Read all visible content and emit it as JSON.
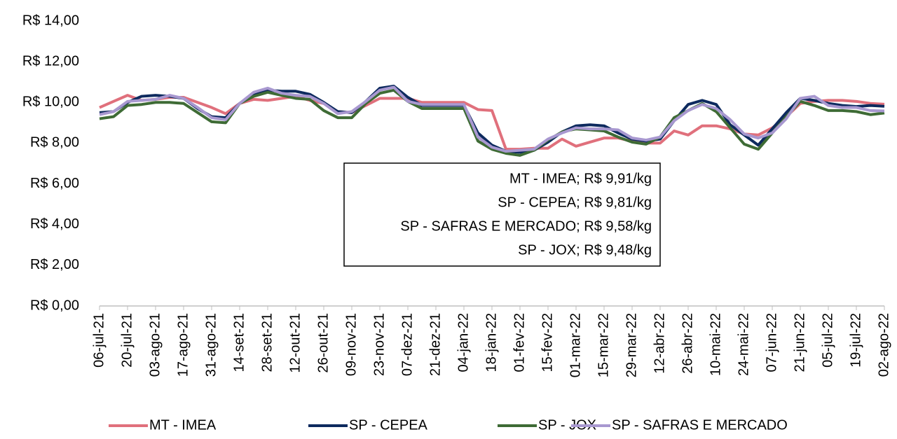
{
  "chart_data": {
    "type": "line",
    "categories": [
      "06-jul-21",
      null,
      "20-jul-21",
      null,
      "03-ago-21",
      null,
      "17-ago-21",
      null,
      "31-ago-21",
      null,
      "14-set-21",
      null,
      "28-set-21",
      null,
      "12-out-21",
      null,
      "26-out-21",
      null,
      "09-nov-21",
      null,
      "23-nov-21",
      null,
      "07-dez-21",
      null,
      "21-dez-21",
      null,
      "04-jan-22",
      null,
      "18-jan-22",
      null,
      "01-fev-22",
      null,
      "15-fev-22",
      null,
      "01-mar-22",
      null,
      "15-mar-22",
      null,
      "29-mar-22",
      null,
      "12-abr-22",
      null,
      "26-abr-22",
      null,
      "10-mai-22",
      null,
      "24-mai-22",
      null,
      "07-jun-22",
      null,
      "21-jun-22",
      null,
      "05-jul-22",
      null,
      "19-jul-22",
      null,
      "02-ago-22"
    ],
    "series": [
      {
        "name": "MT - IMEA",
        "color": "#e0707c",
        "values": [
          9.75,
          10.05,
          10.35,
          10.1,
          10.15,
          10.25,
          10.25,
          10.0,
          9.75,
          9.45,
          9.95,
          10.15,
          10.1,
          10.2,
          10.3,
          10.1,
          9.95,
          9.55,
          9.5,
          9.85,
          10.2,
          10.2,
          10.2,
          10.0,
          10.0,
          10.0,
          10.0,
          9.65,
          9.6,
          7.7,
          7.7,
          7.75,
          7.75,
          8.2,
          7.85,
          8.05,
          8.25,
          8.25,
          8.1,
          8.0,
          8.0,
          8.6,
          8.4,
          8.85,
          8.85,
          8.7,
          8.45,
          8.4,
          8.75,
          9.3,
          9.95,
          10.05,
          10.1,
          10.1,
          10.05,
          9.95,
          9.91
        ]
      },
      {
        "name": "SP - CEPEA",
        "color": "#0d2a5e",
        "values": [
          9.5,
          9.55,
          10.0,
          10.3,
          10.35,
          10.3,
          10.2,
          9.7,
          9.3,
          9.25,
          9.95,
          10.35,
          10.6,
          10.55,
          10.55,
          10.4,
          10.0,
          9.55,
          9.5,
          10.05,
          10.7,
          10.8,
          10.25,
          9.85,
          9.85,
          9.85,
          9.85,
          8.5,
          7.9,
          7.6,
          7.55,
          7.65,
          8.05,
          8.55,
          8.85,
          8.9,
          8.85,
          8.5,
          8.2,
          8.1,
          8.2,
          9.1,
          9.9,
          10.1,
          9.9,
          8.9,
          8.4,
          7.9,
          8.7,
          9.5,
          10.2,
          10.1,
          9.95,
          9.85,
          9.8,
          9.85,
          9.81
        ]
      },
      {
        "name": "SP - JOX",
        "color": "#3e6b35",
        "values": [
          9.2,
          9.3,
          9.85,
          9.9,
          10.0,
          10.0,
          9.95,
          9.5,
          9.05,
          9.0,
          9.95,
          10.3,
          10.5,
          10.35,
          10.2,
          10.15,
          9.6,
          9.25,
          9.25,
          9.95,
          10.45,
          10.6,
          10.05,
          9.7,
          9.7,
          9.7,
          9.7,
          8.1,
          7.7,
          7.5,
          7.4,
          7.65,
          8.15,
          8.55,
          8.7,
          8.65,
          8.6,
          8.3,
          8.05,
          7.95,
          8.3,
          9.25,
          9.6,
          9.95,
          9.55,
          8.75,
          7.95,
          7.7,
          8.5,
          9.3,
          10.05,
          9.85,
          9.6,
          9.6,
          9.55,
          9.4,
          9.48
        ]
      },
      {
        "name": "SP - SAFRAS E MERCADO",
        "color": "#a898d0",
        "values": [
          9.4,
          9.55,
          10.05,
          10.1,
          10.15,
          10.35,
          10.2,
          9.75,
          9.25,
          9.15,
          9.95,
          10.5,
          10.7,
          10.45,
          10.35,
          10.3,
          9.95,
          9.45,
          9.55,
          10.05,
          10.6,
          10.75,
          10.05,
          9.9,
          9.9,
          9.9,
          9.9,
          8.3,
          7.8,
          7.6,
          7.65,
          7.7,
          8.2,
          8.5,
          8.75,
          8.7,
          8.7,
          8.65,
          8.25,
          8.15,
          8.3,
          9.1,
          9.6,
          9.9,
          9.7,
          9.15,
          8.45,
          8.25,
          8.5,
          9.2,
          10.2,
          10.3,
          9.85,
          9.75,
          9.75,
          9.6,
          9.58
        ]
      }
    ],
    "ylim": [
      0,
      14
    ],
    "yticks": [
      {
        "value": 0,
        "label": "R$ 0,00"
      },
      {
        "value": 2,
        "label": "R$ 2,00"
      },
      {
        "value": 4,
        "label": "R$ 4,00"
      },
      {
        "value": 6,
        "label": "R$ 6,00"
      },
      {
        "value": 8,
        "label": "R$ 8,00"
      },
      {
        "value": 10,
        "label": "R$ 10,00"
      },
      {
        "value": 12,
        "label": "R$ 12,00"
      },
      {
        "value": 14,
        "label": "R$ 14,00"
      }
    ],
    "annotations": [
      "MT - IMEA; R$ 9,91/kg",
      "SP - CEPEA; R$ 9,81/kg",
      "SP - SAFRAS E MERCADO; R$ 9,58/kg",
      "SP - JOX; R$ 9,48/kg"
    ],
    "grid": false,
    "legend": "bottom"
  }
}
